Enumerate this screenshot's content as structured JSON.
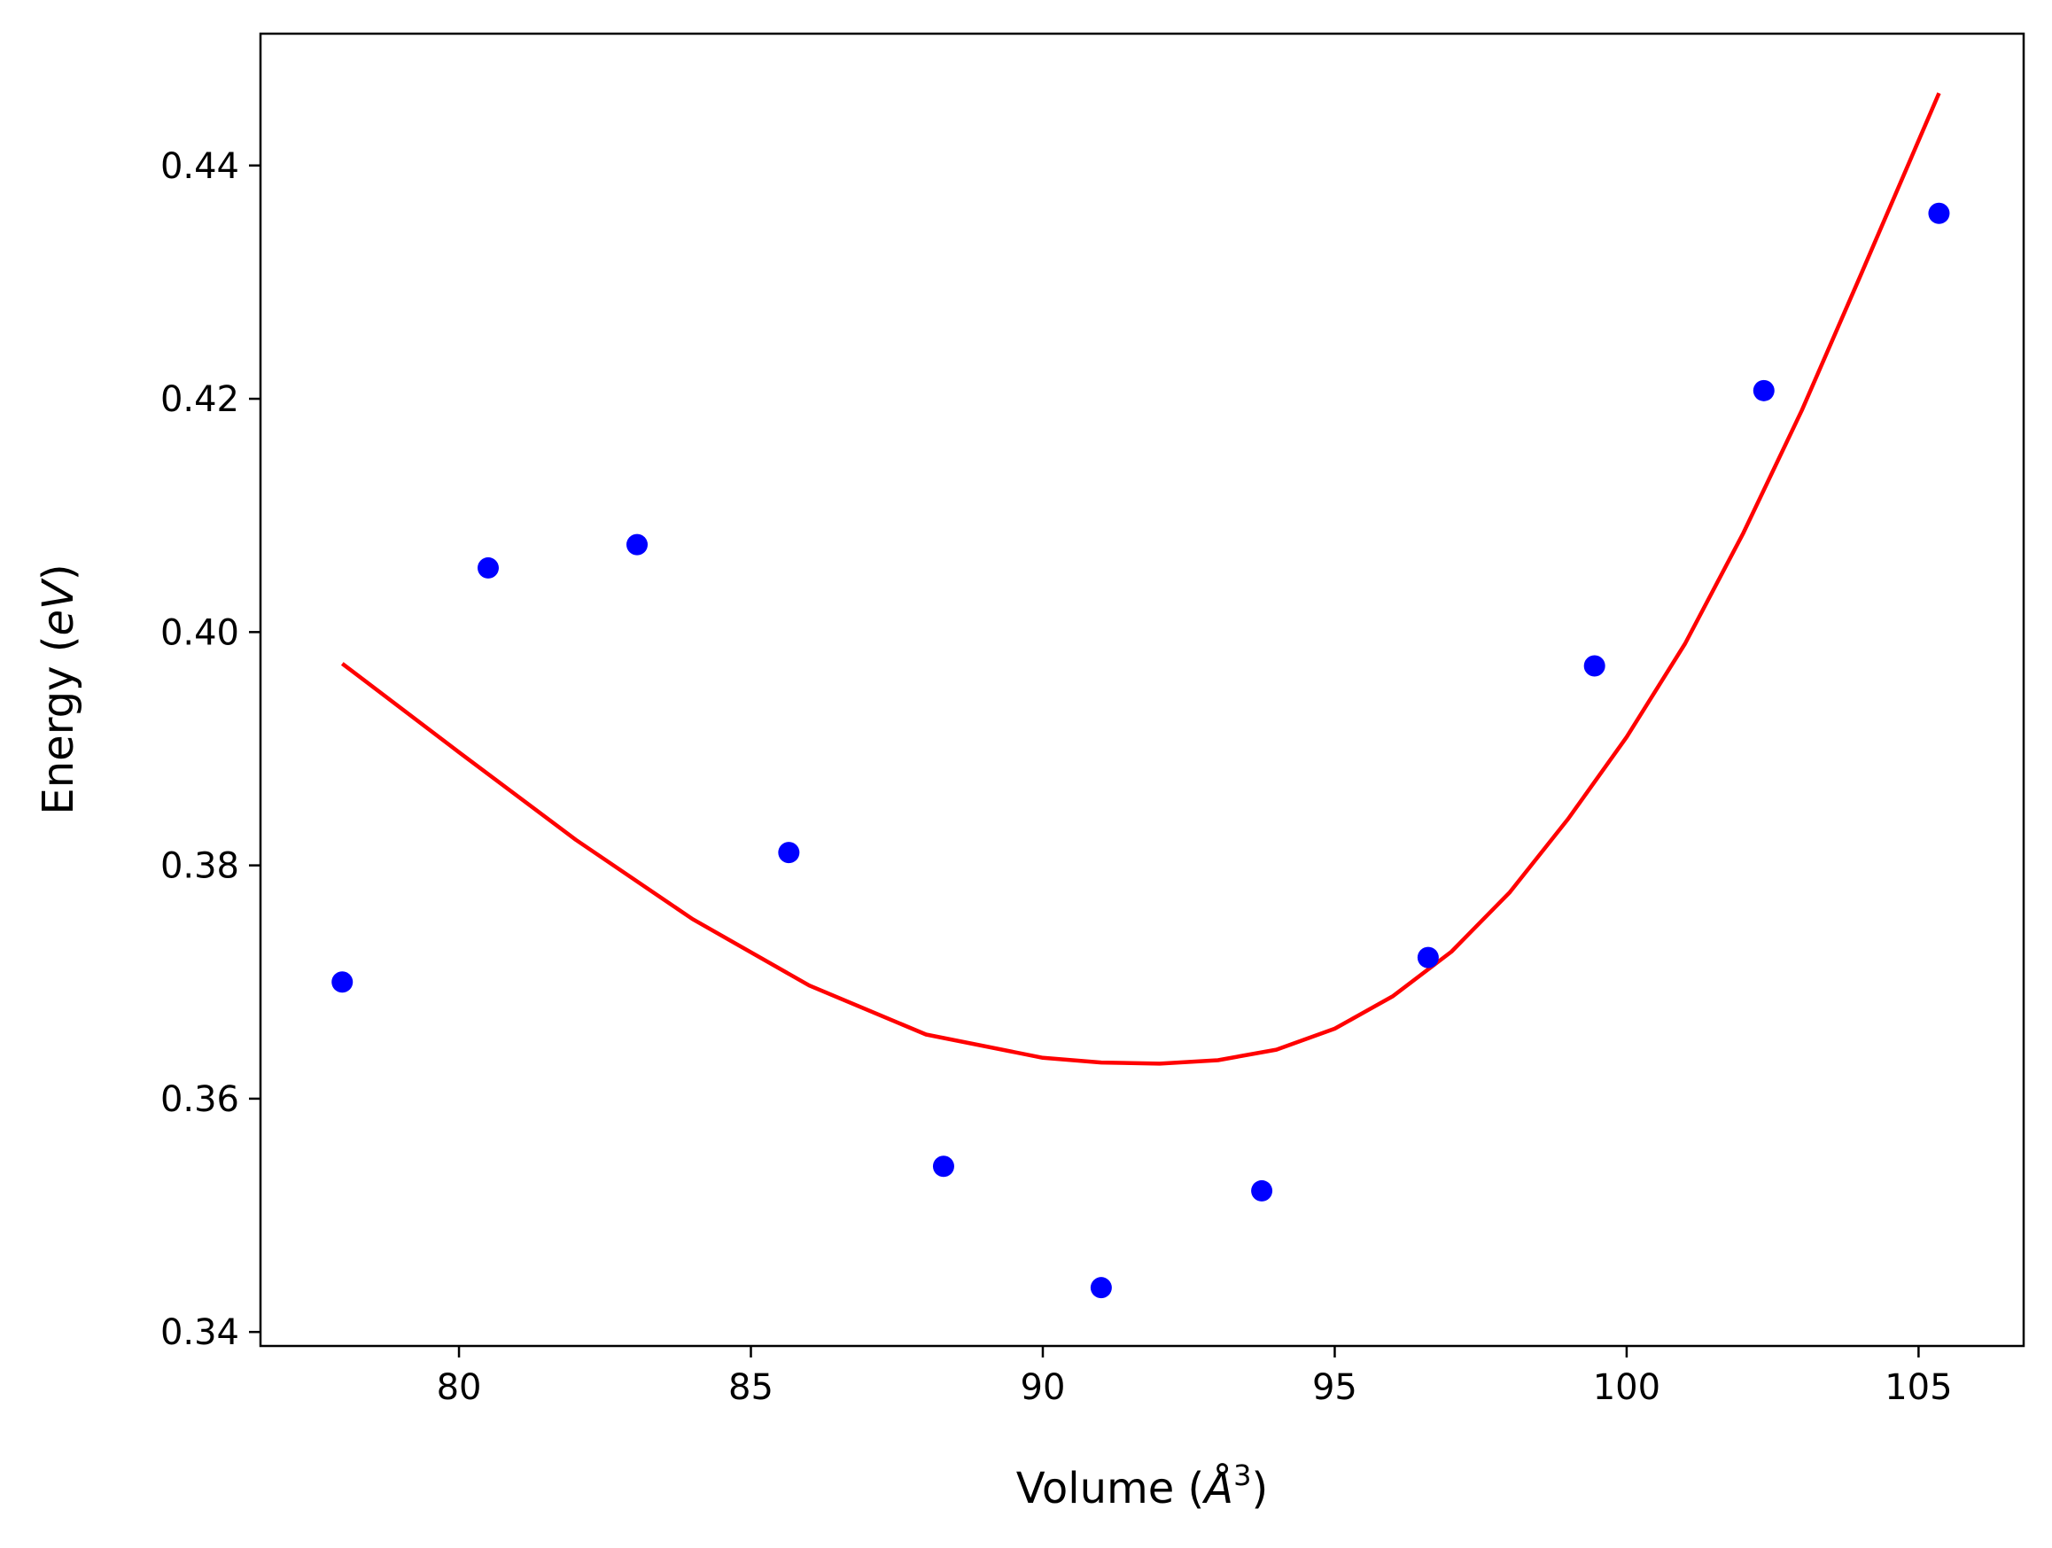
{
  "chart_data": {
    "type": "scatter",
    "title": "",
    "xlabel": "Volume (",
    "xlabel_symbol": "Å",
    "xlabel_exp": "3",
    "xlabel_close": ")",
    "ylabel": "Energy (",
    "ylabel_unit": "eV",
    "ylabel_close": ")",
    "xlim": [
      76.6,
      106.8
    ],
    "ylim": [
      0.3388,
      0.4513
    ],
    "xticks": [
      80,
      85,
      90,
      95,
      100,
      105
    ],
    "yticks": [
      0.34,
      0.36,
      0.38,
      0.4,
      0.42,
      0.44
    ],
    "ytick_labels": [
      "0.34",
      "0.36",
      "0.38",
      "0.40",
      "0.42",
      "0.44"
    ],
    "grid": false,
    "series": [
      {
        "kind": "scatter",
        "color": "#0000ff",
        "x": [
          78.0,
          80.5,
          83.05,
          85.65,
          88.3,
          91.0,
          93.75,
          96.6,
          99.45,
          102.35,
          105.35
        ],
        "y": [
          0.37,
          0.4055,
          0.4075,
          0.3811,
          0.3542,
          0.3438,
          0.3521,
          0.3721,
          0.3971,
          0.4207,
          0.4359
        ]
      },
      {
        "kind": "line",
        "color": "#ff0000",
        "x": [
          78.0,
          80.0,
          82.0,
          84.0,
          86.0,
          88.0,
          90.0,
          91.0,
          92.0,
          93.0,
          94.0,
          95.0,
          96.0,
          97.0,
          98.0,
          99.0,
          100.0,
          101.0,
          102.0,
          103.0,
          104.0,
          105.35
        ],
        "y": [
          0.3973,
          0.3897,
          0.3822,
          0.3754,
          0.3697,
          0.3655,
          0.3635,
          0.3631,
          0.363,
          0.3633,
          0.3642,
          0.366,
          0.3688,
          0.3726,
          0.3777,
          0.384,
          0.391,
          0.399,
          0.4085,
          0.419,
          0.4305,
          0.4462
        ]
      }
    ]
  }
}
